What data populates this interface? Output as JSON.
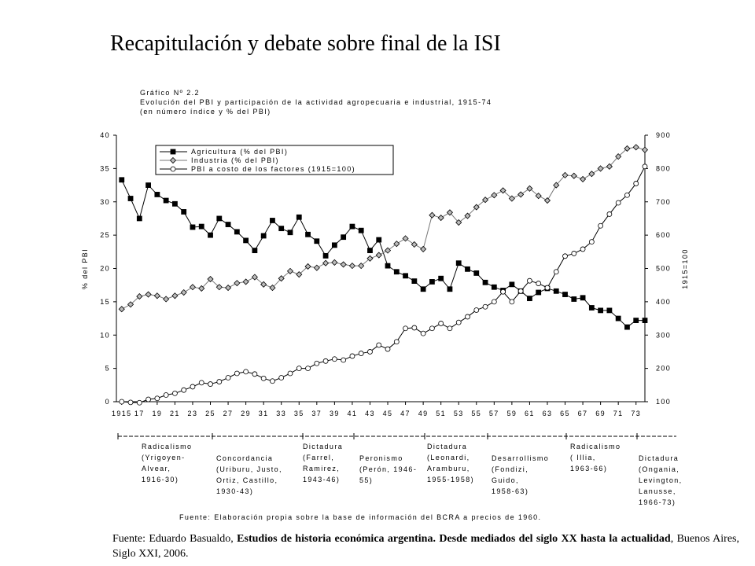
{
  "page": {
    "title": "Recapitulación y debate sobre final de la ISI",
    "source": {
      "parts": [
        {
          "text": "Fuente: Eduardo Basualdo, ",
          "bold": false
        },
        {
          "text": "Estudios de historia económica argentina. Desde mediados del siglo XX hasta la actualidad",
          "bold": true
        },
        {
          "text": ", Buenos Aires, Siglo XXI, 2006.",
          "bold": false
        }
      ]
    }
  },
  "chart_data": {
    "type": "line",
    "title": "Gráfico Nº 2.2",
    "subtitle": [
      "Evolución del PBI y participación de la actividad agropecuaria e industrial, 1915-74",
      "(en número índice y % del PBI)"
    ],
    "y_label": "% del PBI",
    "y2_label": "1915=100",
    "note": "Fuente: Elaboración propia sobre la base de información del BCRA a precios de 1960.",
    "x": [
      1915,
      1916,
      1917,
      1918,
      1919,
      1920,
      1921,
      1922,
      1923,
      1924,
      1925,
      1926,
      1927,
      1928,
      1929,
      1930,
      1931,
      1932,
      1933,
      1934,
      1935,
      1936,
      1937,
      1938,
      1939,
      1940,
      1941,
      1942,
      1943,
      1944,
      1945,
      1946,
      1947,
      1948,
      1949,
      1950,
      1951,
      1952,
      1953,
      1954,
      1955,
      1956,
      1957,
      1958,
      1959,
      1960,
      1961,
      1962,
      1963,
      1964,
      1965,
      1966,
      1967,
      1968,
      1969,
      1970,
      1971,
      1972,
      1973,
      1974
    ],
    "xlim": [
      1914.4,
      1974.0
    ],
    "xticks": [
      1915,
      {
        "value": 1917,
        "label": "17"
      },
      {
        "value": 1919,
        "label": "19"
      },
      {
        "value": 1921,
        "label": "21"
      },
      {
        "value": 1923,
        "label": "23"
      },
      {
        "value": 1925,
        "label": "25"
      },
      {
        "value": 1927,
        "label": "27"
      },
      {
        "value": 1929,
        "label": "29"
      },
      {
        "value": 1931,
        "label": "31"
      },
      {
        "value": 1933,
        "label": "33"
      },
      {
        "value": 1935,
        "label": "35"
      },
      {
        "value": 1937,
        "label": "37"
      },
      {
        "value": 1939,
        "label": "39"
      },
      {
        "value": 1941,
        "label": "41"
      },
      {
        "value": 1943,
        "label": "43"
      },
      {
        "value": 1945,
        "label": "45"
      },
      {
        "value": 1947,
        "label": "47"
      },
      {
        "value": 1949,
        "label": "49"
      },
      {
        "value": 1951,
        "label": "51"
      },
      {
        "value": 1953,
        "label": "53"
      },
      {
        "value": 1955,
        "label": "55"
      },
      {
        "value": 1957,
        "label": "57"
      },
      {
        "value": 1959,
        "label": "59"
      },
      {
        "value": 1961,
        "label": "61"
      },
      {
        "value": 1963,
        "label": "63"
      },
      {
        "value": 1965,
        "label": "65"
      },
      {
        "value": 1967,
        "label": "67"
      },
      {
        "value": 1969,
        "label": "69"
      },
      {
        "value": 1971,
        "label": "71"
      },
      {
        "value": 1973,
        "label": "73"
      }
    ],
    "ylim": [
      0,
      40
    ],
    "yticks": [
      0,
      5,
      10,
      15,
      20,
      25,
      30,
      35,
      40
    ],
    "y2lim": [
      100,
      900
    ],
    "y2ticks": [
      100,
      200,
      300,
      400,
      500,
      600,
      700,
      800,
      900
    ],
    "series": [
      {
        "name": "Agricultura (% del PBI)",
        "color": "#000000",
        "marker": "square",
        "marker_fill": "#000000",
        "values": [
          33.3,
          30.5,
          27.5,
          32.5,
          31.1,
          30.2,
          29.7,
          28.5,
          26.2,
          26.3,
          25.0,
          27.5,
          26.6,
          25.5,
          24.2,
          22.7,
          24.9,
          27.2,
          26.0,
          25.4,
          27.7,
          25.1,
          24.1,
          21.9,
          23.5,
          24.7,
          26.3,
          25.7,
          22.7,
          24.3,
          20.4,
          19.5,
          18.9,
          18.1,
          16.9,
          18.0,
          18.5,
          16.9,
          20.8,
          19.9,
          19.3,
          17.9,
          17.2,
          16.7,
          17.6,
          16.6,
          15.5,
          16.4,
          17.0,
          16.6,
          16.1,
          15.4,
          15.6,
          14.1,
          13.7,
          13.7,
          12.5,
          11.2,
          12.2,
          12.2
        ]
      },
      {
        "name": "Industria (% del PBI)",
        "color": "#777777",
        "marker": "diamond",
        "marker_fill": "#bbbbbb",
        "values": [
          13.9,
          14.6,
          15.8,
          16.1,
          15.9,
          15.4,
          15.9,
          16.4,
          17.2,
          17.0,
          18.4,
          17.2,
          17.1,
          17.8,
          18.0,
          18.7,
          17.6,
          17.1,
          18.5,
          19.6,
          19.1,
          20.3,
          20.1,
          20.8,
          20.9,
          20.6,
          20.4,
          20.4,
          21.5,
          22.0,
          22.7,
          23.7,
          24.5,
          23.6,
          22.9,
          28.0,
          27.6,
          28.4,
          26.9,
          27.9,
          29.2,
          30.3,
          31.0,
          31.7,
          30.5,
          31.1,
          32.0,
          30.9,
          30.2,
          32.5,
          34.0,
          33.9,
          33.4,
          34.2,
          35.0,
          35.3,
          36.8,
          38.0,
          38.2,
          37.8
        ]
      },
      {
        "name": "PBI a costo de los factores (1915=100)",
        "color": "#000000",
        "marker": "circle",
        "marker_fill": "#ffffff",
        "axis": "y2",
        "values": [
          100,
          98,
          97,
          107,
          110,
          120,
          125,
          135,
          145,
          157,
          153,
          160,
          172,
          185,
          190,
          183,
          170,
          162,
          172,
          185,
          200,
          200,
          215,
          222,
          228,
          225,
          237,
          245,
          250,
          270,
          258,
          280,
          320,
          322,
          305,
          320,
          335,
          320,
          338,
          355,
          375,
          385,
          400,
          430,
          400,
          432,
          463,
          455,
          442,
          490,
          537,
          545,
          558,
          580,
          628,
          663,
          697,
          720,
          755,
          806
        ]
      }
    ],
    "periods": [
      {
        "lines": [
          "Radicalismo",
          "(Yrigoyen-",
          "Alvear,",
          "1916-30)"
        ]
      },
      {
        "lines": [
          "Concordancia",
          "(Uriburu, Justo,",
          "Ortiz, Castillo,",
          "1930-43)"
        ]
      },
      {
        "lines": [
          "Dictadura",
          "(Farrel,",
          "Ramirez,",
          "1943-46)"
        ]
      },
      {
        "lines": [
          "Peronismo",
          " (Perón, 1946-",
          "55)"
        ]
      },
      {
        "lines": [
          "Dictadura",
          "(Leonardi,",
          "Aramburu,",
          "1955-1958)"
        ]
      },
      {
        "lines": [
          "Desarrollismo",
          "(Fondizi,",
          "Guido,",
          "1958-63)"
        ]
      },
      {
        "lines": [
          "Radicalismo",
          "( Illia,",
          "1963-66)"
        ]
      },
      {
        "lines": [
          "Dictadura",
          "(Ongania,",
          "Levington,",
          " Lanusse,",
          "1966-73)"
        ]
      }
    ]
  }
}
